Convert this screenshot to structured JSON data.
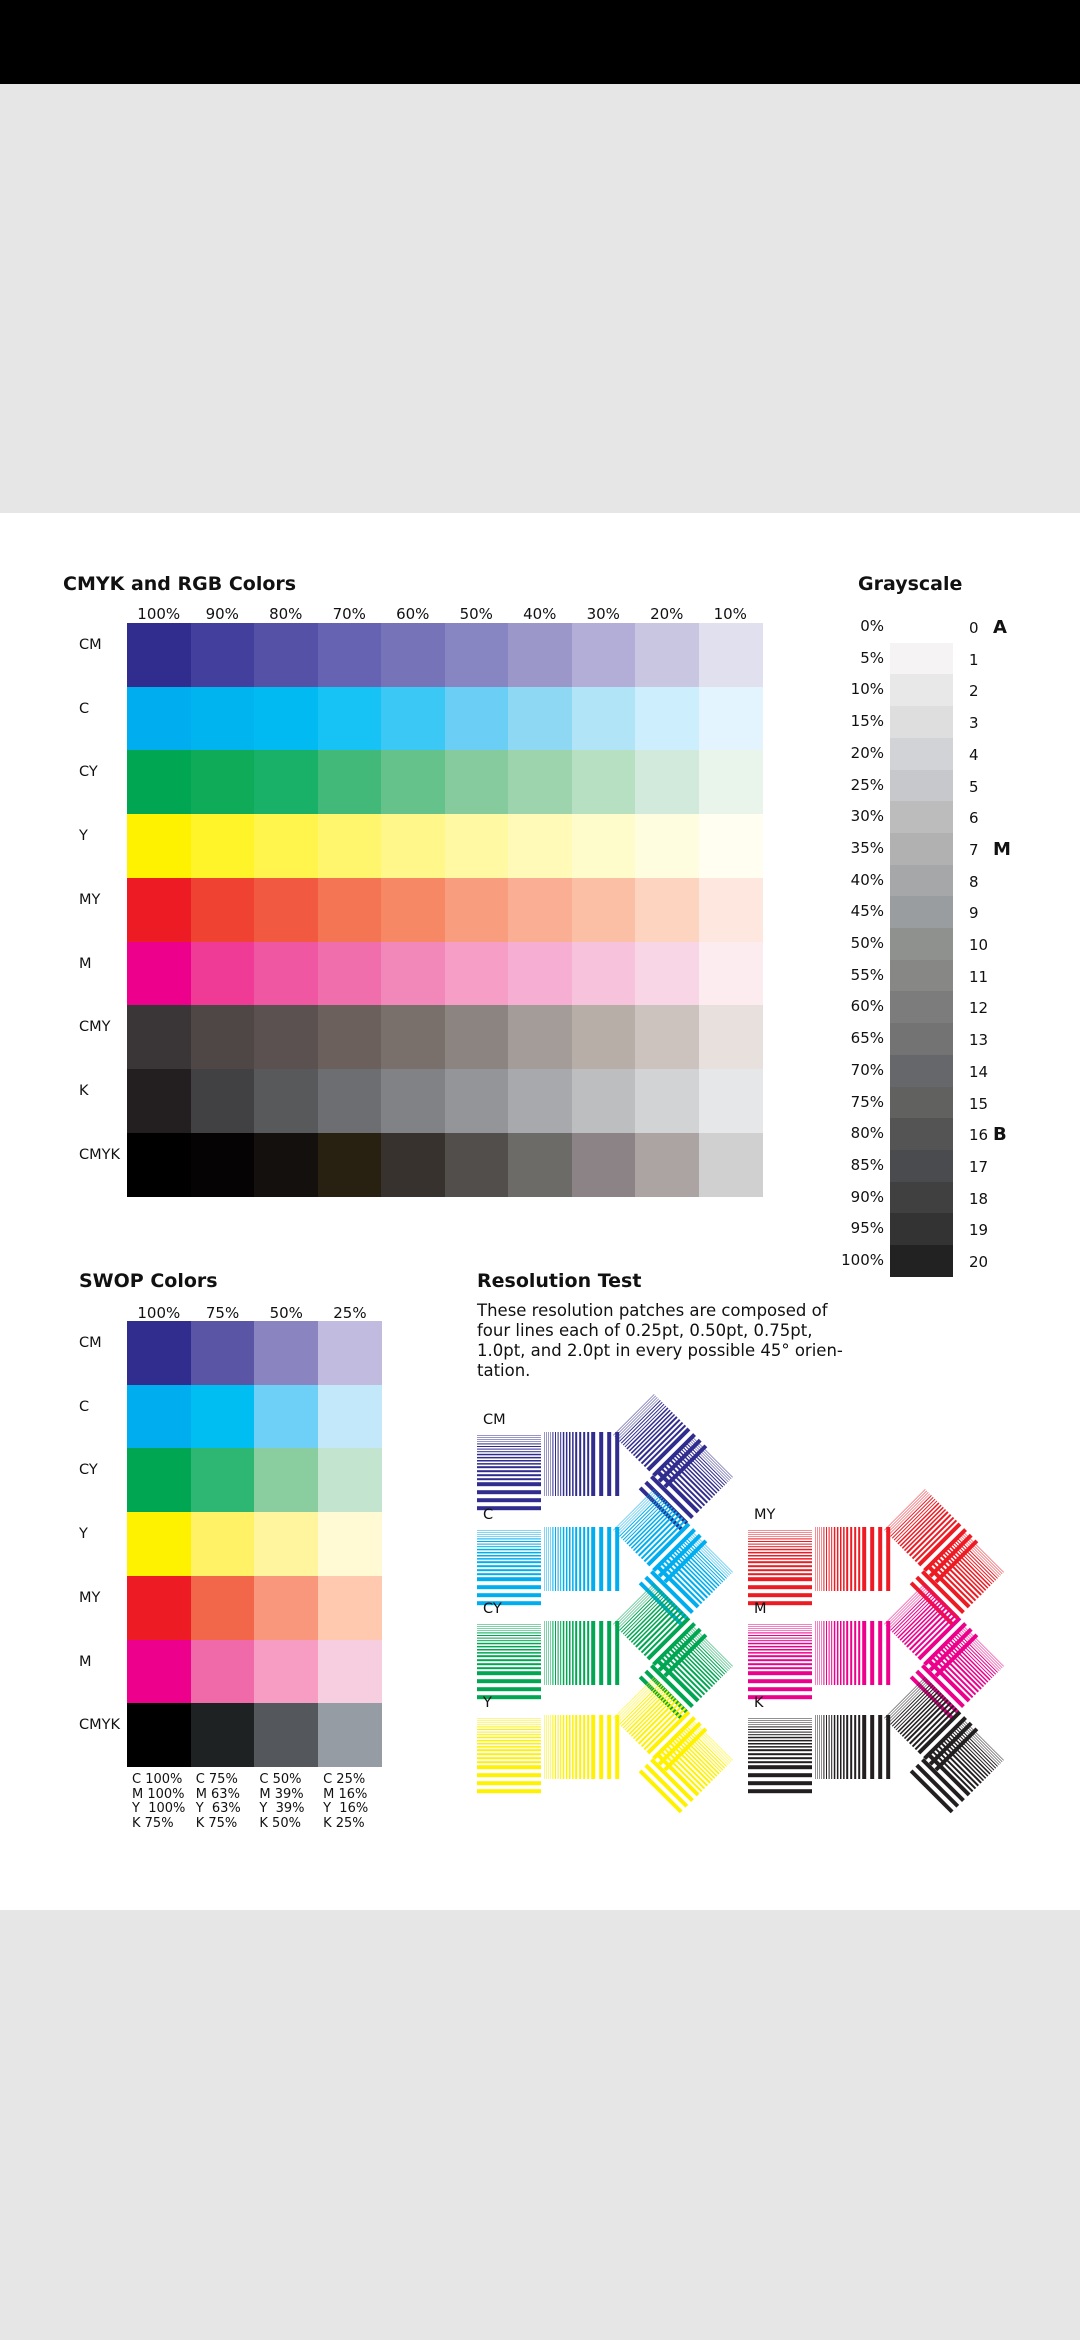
{
  "cmyk": {
    "title": "CMYK and RGB Colors",
    "columns": [
      "100%",
      "90%",
      "80%",
      "70%",
      "60%",
      "50%",
      "40%",
      "30%",
      "20%",
      "10%"
    ],
    "rows": [
      {
        "label": "CM",
        "colors": [
          "#312d8f",
          "#433f9c",
          "#5451a7",
          "#6663b2",
          "#7673b9",
          "#8785c2",
          "#9b97c8",
          "#b2aed8",
          "#c8c6e1",
          "#e0e0ef"
        ]
      },
      {
        "label": "C",
        "colors": [
          "#00aeef",
          "#00b4f0",
          "#00baf1",
          "#17c3f4",
          "#3cc8f5",
          "#6bcff5",
          "#8fd8f3",
          "#b0e4f6",
          "#cdeefc",
          "#e4f4fe"
        ]
      },
      {
        "label": "CY",
        "colors": [
          "#00a651",
          "#0fab58",
          "#19b068",
          "#42b979",
          "#66c28b",
          "#86cb9d",
          "#9dd3ad",
          "#b6e0c1",
          "#d2eadb",
          "#e9f4ea"
        ]
      },
      {
        "label": "Y",
        "colors": [
          "#fff200",
          "#fff42a",
          "#fff54c",
          "#fff66d",
          "#fff78a",
          "#fff9a3",
          "#fffab8",
          "#fffccb",
          "#fffde0",
          "#fffef0"
        ]
      },
      {
        "label": "MY",
        "colors": [
          "#ed1c24",
          "#ef4233",
          "#f15a40",
          "#f47553",
          "#f68866",
          "#f89d7e",
          "#faae93",
          "#fbbfa5",
          "#fdd4bf",
          "#fee7df"
        ]
      },
      {
        "label": "M",
        "colors": [
          "#ec008c",
          "#ef3b96",
          "#f057a3",
          "#f06eac",
          "#f287b9",
          "#f69ec5",
          "#f6afd2",
          "#f7c3dc",
          "#f8d6e6",
          "#fdecef"
        ]
      },
      {
        "label": "CMY",
        "colors": [
          "#3a3536",
          "#4e4745",
          "#5a5150",
          "#6b605b",
          "#79706b",
          "#8c8480",
          "#a49c98",
          "#b8aea8",
          "#ccc3bf",
          "#e7e0dd"
        ]
      },
      {
        "label": "K",
        "colors": [
          "#231f20",
          "#414042",
          "#58595b",
          "#6d6e71",
          "#808285",
          "#939598",
          "#a7a9ac",
          "#bcbec0",
          "#d1d3d4",
          "#e6e7e8"
        ]
      },
      {
        "label": "CMYK",
        "colors": [
          "#000000",
          "#050303",
          "#13100d",
          "#282010",
          "#38322e",
          "#524e4b",
          "#6d6b67",
          "#8b8385",
          "#aca3a3",
          "#d0d0d0"
        ]
      }
    ]
  },
  "grayscale": {
    "title": "Grayscale",
    "steps": [
      {
        "pct": "0%",
        "idx": "0",
        "color": "#ffffff",
        "letter": "A"
      },
      {
        "pct": "5%",
        "idx": "1",
        "color": "#f6f3f5",
        "letter": ""
      },
      {
        "pct": "10%",
        "idx": "2",
        "color": "#e8e8e8",
        "letter": ""
      },
      {
        "pct": "15%",
        "idx": "3",
        "color": "#dedede",
        "letter": ""
      },
      {
        "pct": "20%",
        "idx": "4",
        "color": "#d2d3d6",
        "letter": ""
      },
      {
        "pct": "25%",
        "idx": "5",
        "color": "#c6c8cb",
        "letter": ""
      },
      {
        "pct": "30%",
        "idx": "6",
        "color": "#bcbcbc",
        "letter": ""
      },
      {
        "pct": "35%",
        "idx": "7",
        "color": "#b1b1b1",
        "letter": "M"
      },
      {
        "pct": "40%",
        "idx": "8",
        "color": "#a5a7a9",
        "letter": ""
      },
      {
        "pct": "45%",
        "idx": "9",
        "color": "#9a9d9f",
        "letter": ""
      },
      {
        "pct": "50%",
        "idx": "10",
        "color": "#8f918e",
        "letter": ""
      },
      {
        "pct": "55%",
        "idx": "11",
        "color": "#878785",
        "letter": ""
      },
      {
        "pct": "60%",
        "idx": "12",
        "color": "#7d7c7c",
        "letter": ""
      },
      {
        "pct": "65%",
        "idx": "13",
        "color": "#737373",
        "letter": ""
      },
      {
        "pct": "70%",
        "idx": "14",
        "color": "#66676a",
        "letter": ""
      },
      {
        "pct": "75%",
        "idx": "15",
        "color": "#616260",
        "letter": ""
      },
      {
        "pct": "80%",
        "idx": "16",
        "color": "#545454",
        "letter": "B"
      },
      {
        "pct": "85%",
        "idx": "17",
        "color": "#4a4b4f",
        "letter": ""
      },
      {
        "pct": "90%",
        "idx": "18",
        "color": "#404040",
        "letter": ""
      },
      {
        "pct": "95%",
        "idx": "19",
        "color": "#333333",
        "letter": ""
      },
      {
        "pct": "100%",
        "idx": "20",
        "color": "#222222",
        "letter": ""
      }
    ]
  },
  "swop": {
    "title": "SWOP Colors",
    "columns": [
      "100%",
      "75%",
      "50%",
      "25%"
    ],
    "rows": [
      {
        "label": "CM",
        "colors": [
          "#312d8f",
          "#5b55a5",
          "#8a85c0",
          "#c0bbdf"
        ]
      },
      {
        "label": "C",
        "colors": [
          "#00aeef",
          "#00bdf2",
          "#6ed0f6",
          "#c2e8fa"
        ]
      },
      {
        "label": "CY",
        "colors": [
          "#00a651",
          "#2db773",
          "#8acd9f",
          "#c3e5cf"
        ]
      },
      {
        "label": "Y",
        "colors": [
          "#fff200",
          "#fff266",
          "#fff59f",
          "#fffad3"
        ]
      },
      {
        "label": "MY",
        "colors": [
          "#ed1c24",
          "#f2664a",
          "#f8977b",
          "#fec9af"
        ]
      },
      {
        "label": "M",
        "colors": [
          "#ec008c",
          "#f06aaa",
          "#f79dc3",
          "#f7cde0"
        ]
      },
      {
        "label": "CMYK",
        "colors": [
          "#000000",
          "#1e2223",
          "#54585c",
          "#969ca3"
        ]
      }
    ],
    "values": [
      "C 100%\nM 100%\nY  100%\nK 75%",
      "C 75%\nM 63%\nY  63%\nK 75%",
      "C 50%\nM 39%\nY  39%\nK 50%",
      "C 25%\nM 16%\nY  16%\nK 25%"
    ]
  },
  "resolution": {
    "title": "Resolution Test",
    "description": "These resolution patches are composed of four lines each of 0.25pt, 0.50pt, 0.75pt, 1.0pt, and 2.0pt in every possible 45° orien-tation.",
    "patches": [
      {
        "label": "CM",
        "color": "#312d8f"
      },
      {
        "label": "C",
        "color": "#00aeef"
      },
      {
        "label": "CY",
        "color": "#00a651"
      },
      {
        "label": "Y",
        "color": "#fff200"
      },
      {
        "label": "MY",
        "color": "#ed1c24"
      },
      {
        "label": "M",
        "color": "#ec008c"
      },
      {
        "label": "K",
        "color": "#231f20"
      }
    ]
  }
}
